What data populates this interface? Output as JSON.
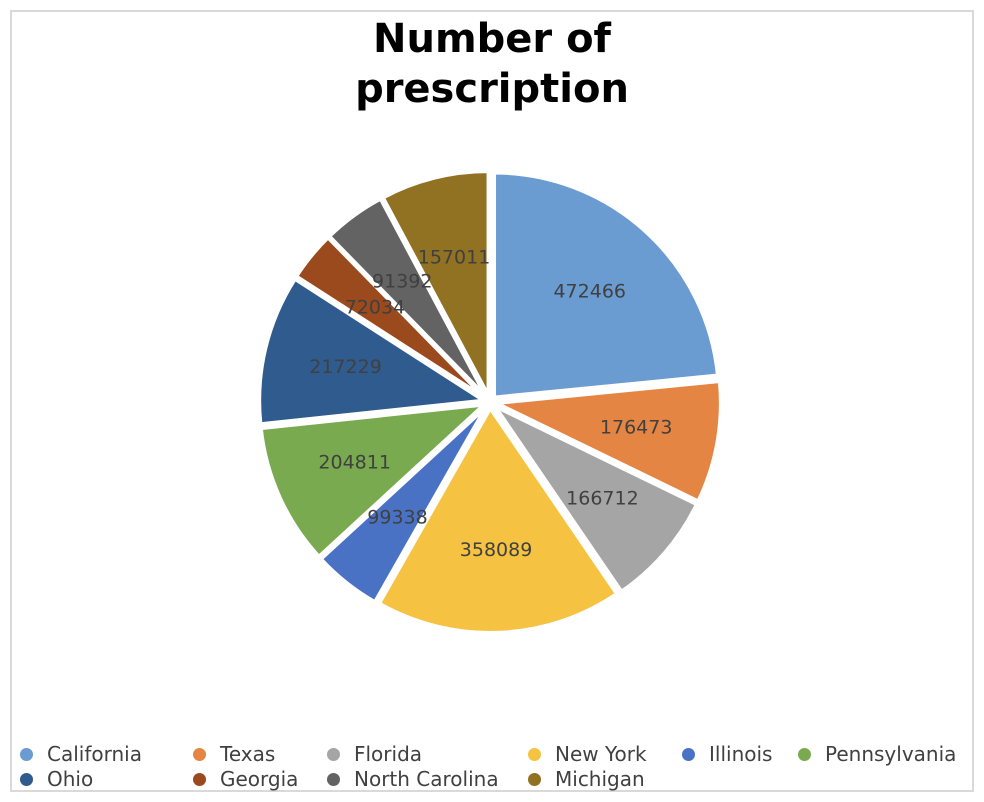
{
  "chart_data": {
    "type": "pie",
    "title": "Number of prescription",
    "title_lines": [
      "Number of",
      "prescription"
    ],
    "categories": [
      "California",
      "Texas",
      "Florida",
      "New York",
      "Illinois",
      "Pennsylvania",
      "Ohio",
      "Georgia",
      "North Carolina",
      "Michigan"
    ],
    "values": [
      472466,
      176473,
      166712,
      358089,
      99338,
      204811,
      217229,
      72034,
      91392,
      157011
    ],
    "colors": [
      "#6a9bd1",
      "#e48543",
      "#a5a5a5",
      "#f5c242",
      "#4a72c4",
      "#79aa4f",
      "#2f5b8e",
      "#9a4a1c",
      "#636363",
      "#917122"
    ],
    "data_labels": [
      "472466",
      "176473",
      "166712",
      "358089",
      "99338",
      "204811",
      "217229",
      "72034",
      "91392",
      "157011"
    ],
    "legend_position": "bottom",
    "exploded": true
  }
}
